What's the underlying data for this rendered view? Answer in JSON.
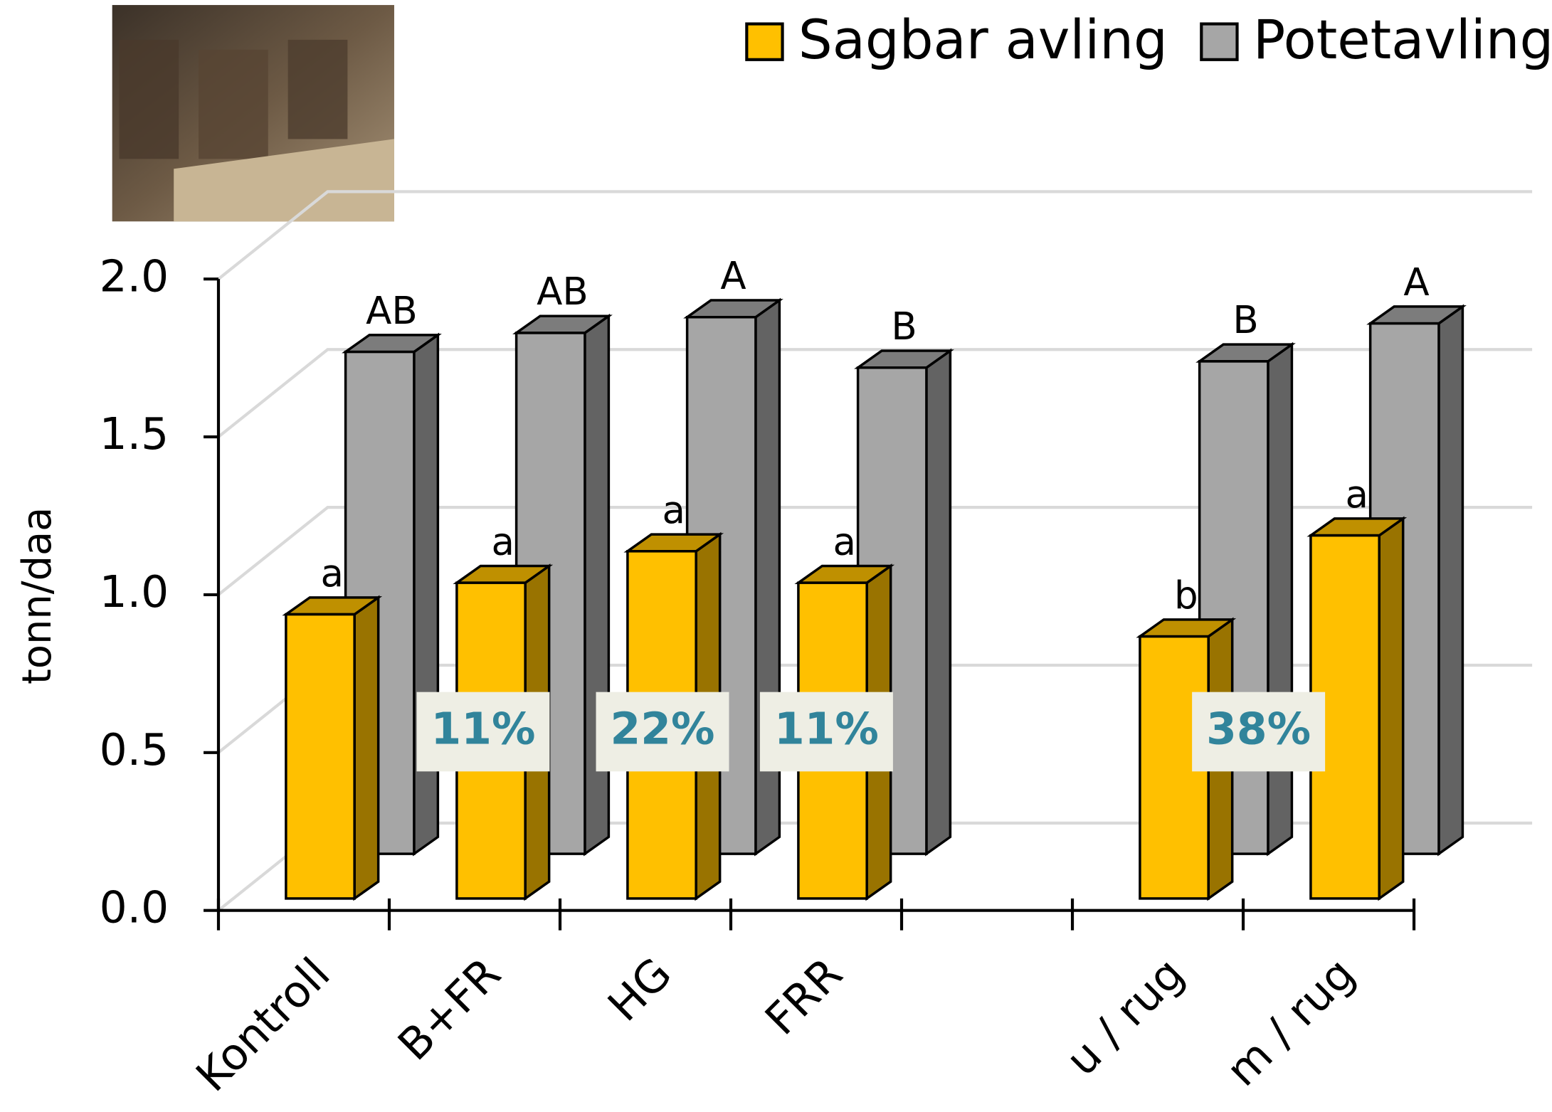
{
  "chart_data": {
    "type": "bar3d",
    "y_label": "tonn/daa",
    "categories": [
      "Kontroll",
      "B+FR",
      "HG",
      "FRR",
      null,
      "u / rug",
      "m / rug"
    ],
    "series": [
      {
        "name": "Sagbar avling",
        "color": "#FFC000",
        "values": [
          0.9,
          1.0,
          1.1,
          1.0,
          null,
          0.83,
          1.15
        ],
        "labels": [
          "a",
          "a",
          "a",
          "a",
          null,
          "b",
          "a"
        ]
      },
      {
        "name": "Potetavling",
        "color": "#A6A6A6",
        "values": [
          1.59,
          1.65,
          1.7,
          1.54,
          null,
          1.56,
          1.68
        ],
        "labels": [
          "AB",
          "AB",
          "A",
          "B",
          null,
          "B",
          "A"
        ]
      }
    ],
    "percent_labels": [
      "11%",
      "22%",
      "11%",
      "38%"
    ],
    "ylim": [
      0,
      2
    ],
    "yticks": [
      {
        "value": 0,
        "label": "0.0"
      },
      0.5,
      {
        "value": 1,
        "label": "1.0"
      },
      1.5,
      {
        "value": 2,
        "label": "2.0"
      }
    ],
    "grid": true,
    "legend": "top-right"
  }
}
